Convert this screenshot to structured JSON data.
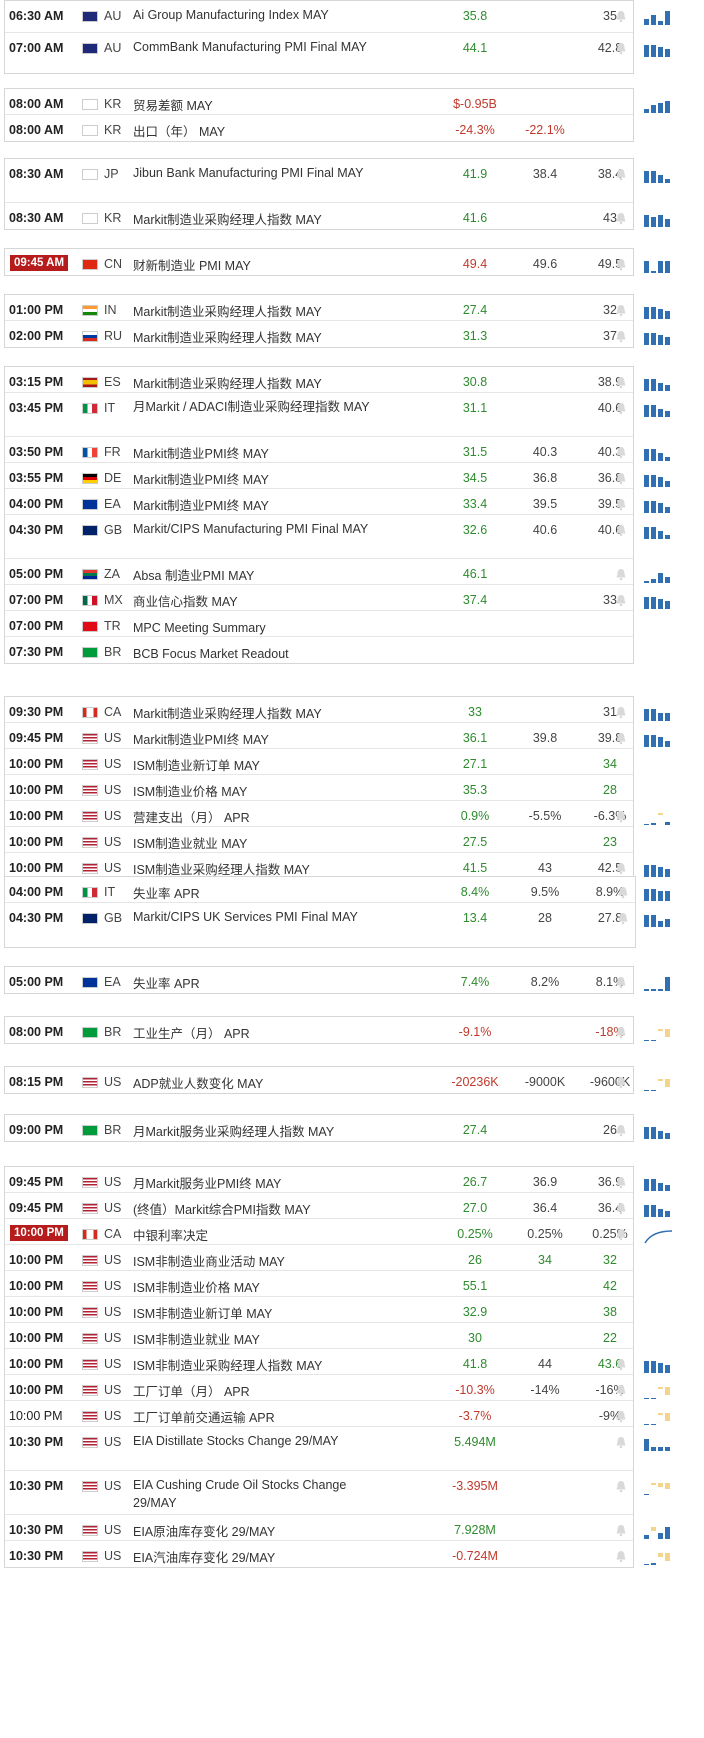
{
  "colors": {
    "positive": "#2e8b2e",
    "negative": "#c0392b",
    "highlight": "#b71c1c",
    "bar": "#2f6fb2",
    "bar_neg": "#f2d58a"
  },
  "groups": [
    {
      "rows": [
        {
          "time": "06:30 AM",
          "cc": "AU",
          "flag": "au",
          "event": "Ai Group Manufacturing Index MAY",
          "actual": "35.8",
          "actual_c": "pos",
          "forecast": "",
          "previous": "35",
          "previous_c": "neu",
          "spark": [
            6,
            10,
            4,
            14
          ],
          "bell": true
        },
        {
          "time": "07:00 AM",
          "cc": "AU",
          "flag": "au",
          "event": "CommBank Manufacturing PMI Final MAY",
          "actual": "44.1",
          "actual_c": "pos",
          "forecast": "",
          "previous": "42.8",
          "previous_c": "neu",
          "spark": [
            12,
            12,
            10,
            8
          ],
          "bell": true
        }
      ]
    },
    {
      "rows": [
        {
          "time": "08:00 AM",
          "cc": "KR",
          "flag": "kr",
          "event": "贸易差额 MAY",
          "actual": "$-0.95B",
          "actual_c": "neg",
          "forecast": "",
          "previous": "",
          "previous_c": "neu",
          "spark": [
            4,
            8,
            10,
            12
          ],
          "bell": false
        },
        {
          "time": "08:00 AM",
          "cc": "KR",
          "flag": "kr",
          "event": "出口（年） MAY",
          "actual": "-24.3%",
          "actual_c": "neg",
          "forecast": "-22.1%",
          "forecast_c": "neg",
          "previous": "",
          "previous_c": "neu",
          "spark": [],
          "bell": false
        }
      ]
    },
    {
      "rows": [
        {
          "time": "08:30 AM",
          "cc": "JP",
          "flag": "jp",
          "event": "Jibun Bank Manufacturing PMI Final MAY",
          "actual": "41.9",
          "actual_c": "pos",
          "forecast": "38.4",
          "previous": "38.4",
          "previous_c": "neu",
          "spark": [
            12,
            12,
            8,
            4
          ],
          "bell": true
        },
        {
          "time": "08:30 AM",
          "cc": "KR",
          "flag": "kr",
          "event": "Markit制造业采购经理人指数 MAY",
          "actual": "41.6",
          "actual_c": "pos",
          "forecast": "",
          "previous": "43",
          "previous_c": "neu",
          "spark": [
            12,
            10,
            12,
            8
          ],
          "bell": true
        }
      ]
    },
    {
      "rows": [
        {
          "time": "09:45 AM",
          "hl": true,
          "cc": "CN",
          "flag": "cn",
          "event": "财新制造业 PMI MAY",
          "actual": "49.4",
          "actual_c": "neg",
          "forecast": "49.6",
          "previous": "49.5",
          "previous_c": "neu",
          "spark": [
            12,
            2,
            12,
            12
          ],
          "bell": true
        }
      ]
    },
    {
      "rows": [
        {
          "time": "01:00 PM",
          "cc": "IN",
          "flag": "in",
          "event": "Markit制造业采购经理人指数 MAY",
          "actual": "27.4",
          "actual_c": "pos",
          "forecast": "",
          "previous": "32",
          "previous_c": "neu",
          "spark": [
            12,
            12,
            10,
            8
          ],
          "bell": true
        },
        {
          "time": "02:00 PM",
          "cc": "RU",
          "flag": "ru",
          "event": "Markit制造业采购经理人指数 MAY",
          "actual": "31.3",
          "actual_c": "pos",
          "forecast": "",
          "previous": "37",
          "previous_c": "neu",
          "spark": [
            12,
            12,
            10,
            8
          ],
          "bell": true
        }
      ]
    },
    {
      "rows": [
        {
          "time": "03:15 PM",
          "cc": "ES",
          "flag": "es",
          "event": "Markit制造业采购经理人指数 MAY",
          "actual": "30.8",
          "actual_c": "pos",
          "forecast": "",
          "previous": "38.9",
          "previous_c": "neu",
          "spark": [
            12,
            12,
            8,
            6
          ],
          "bell": true
        },
        {
          "time": "03:45 PM",
          "cc": "IT",
          "flag": "it",
          "event": "月Markit / ADACI制造业采购经理指数 MAY",
          "actual": "31.1",
          "actual_c": "pos",
          "forecast": "",
          "previous": "40.6",
          "previous_c": "neu",
          "spark": [
            12,
            12,
            8,
            6
          ],
          "bell": true
        },
        {
          "time": "03:50 PM",
          "cc": "FR",
          "flag": "fr",
          "event": "Markit制造业PMI终 MAY",
          "actual": "31.5",
          "actual_c": "pos",
          "forecast": "40.3",
          "previous": "40.3",
          "previous_c": "neu",
          "spark": [
            12,
            12,
            8,
            4
          ],
          "bell": true
        },
        {
          "time": "03:55 PM",
          "cc": "DE",
          "flag": "de",
          "event": "Markit制造业PMI终 MAY",
          "actual": "34.5",
          "actual_c": "pos",
          "forecast": "36.8",
          "previous": "36.8",
          "previous_c": "neu",
          "spark": [
            12,
            12,
            10,
            6
          ],
          "bell": true
        },
        {
          "time": "04:00 PM",
          "cc": "EA",
          "flag": "eu",
          "event": "Markit制造业PMI终 MAY",
          "actual": "33.4",
          "actual_c": "pos",
          "forecast": "39.5",
          "previous": "39.5",
          "previous_c": "neu",
          "spark": [
            12,
            12,
            10,
            6
          ],
          "bell": true
        },
        {
          "time": "04:30 PM",
          "cc": "GB",
          "flag": "gb",
          "event": "Markit/CIPS Manufacturing PMI Final MAY",
          "actual": "32.6",
          "actual_c": "pos",
          "forecast": "40.6",
          "previous": "40.6",
          "previous_c": "neu",
          "spark": [
            12,
            12,
            8,
            4
          ],
          "bell": true
        },
        {
          "time": "05:00 PM",
          "cc": "ZA",
          "flag": "za",
          "event": "Absa 制造业PMI MAY",
          "actual": "46.1",
          "actual_c": "pos",
          "forecast": "",
          "previous": "",
          "previous_c": "neu",
          "spark": [
            2,
            4,
            10,
            6
          ],
          "bell": true
        },
        {
          "time": "07:00 PM",
          "cc": "MX",
          "flag": "mx",
          "event": "商业信心指数 MAY",
          "actual": "37.4",
          "actual_c": "pos",
          "forecast": "",
          "previous": "33",
          "previous_c": "neu",
          "spark": [
            12,
            12,
            10,
            8
          ],
          "bell": true
        },
        {
          "time": "07:00 PM",
          "cc": "TR",
          "flag": "tr",
          "event": "MPC Meeting Summary",
          "actual": "",
          "actual_c": "pos",
          "forecast": "",
          "previous": "",
          "previous_c": "neu",
          "spark": [],
          "bell": false
        },
        {
          "time": "07:30 PM",
          "cc": "BR",
          "flag": "br",
          "event": "BCB Focus Market Readout",
          "actual": "",
          "actual_c": "pos",
          "forecast": "",
          "previous": "",
          "previous_c": "neu",
          "spark": [],
          "bell": false
        }
      ]
    },
    {
      "rows": [
        {
          "time": "09:30 PM",
          "cc": "CA",
          "flag": "ca",
          "event": "Markit制造业采购经理人指数 MAY",
          "actual": "33",
          "actual_c": "pos",
          "forecast": "",
          "previous": "31",
          "previous_c": "neu",
          "spark": [
            12,
            12,
            8,
            8
          ],
          "bell": true
        },
        {
          "time": "09:45 PM",
          "cc": "US",
          "flag": "us",
          "event": "Markit制造业PMI终 MAY",
          "actual": "36.1",
          "actual_c": "pos",
          "forecast": "39.8",
          "previous": "39.8",
          "previous_c": "neu",
          "spark": [
            12,
            12,
            10,
            6
          ],
          "bell": true
        },
        {
          "time": "10:00 PM",
          "cc": "US",
          "flag": "us",
          "event": "ISM制造业新订单 MAY",
          "actual": "27.1",
          "actual_c": "pos",
          "forecast": "",
          "previous": "34",
          "previous_c": "pos",
          "spark": [],
          "bell": false
        },
        {
          "time": "10:00 PM",
          "cc": "US",
          "flag": "us",
          "event": "ISM制造业价格 MAY",
          "actual": "35.3",
          "actual_c": "pos",
          "forecast": "",
          "previous": "28",
          "previous_c": "pos",
          "spark": [],
          "bell": false
        },
        {
          "time": "10:00 PM",
          "cc": "US",
          "flag": "us",
          "event": "营建支出（月） APR",
          "actual": "0.9%",
          "actual_c": "pos",
          "forecast": "-5.5%",
          "previous": "-6.3%",
          "previous_c": "neu",
          "spark": [
            1,
            2,
            -2,
            3
          ],
          "bell": true
        },
        {
          "time": "10:00 PM",
          "cc": "US",
          "flag": "us",
          "event": "ISM制造业就业 MAY",
          "actual": "27.5",
          "actual_c": "pos",
          "forecast": "",
          "previous": "23",
          "previous_c": "pos",
          "spark": [],
          "bell": false
        },
        {
          "time": "10:00 PM",
          "cc": "US",
          "flag": "us",
          "event": "ISM制造业采购经理人指数 MAY",
          "actual": "41.5",
          "actual_c": "pos",
          "forecast": "43",
          "previous": "42.5",
          "previous_c": "neu",
          "spark": [
            12,
            12,
            10,
            8
          ],
          "bell": true
        }
      ]
    },
    {
      "rows": [
        {
          "time": "04:00 PM",
          "cc": "IT",
          "flag": "it",
          "event": "失业率 APR",
          "actual": "8.4%",
          "actual_c": "pos",
          "forecast": "9.5%",
          "previous": "8.9%",
          "previous_c": "neu",
          "spark": [
            12,
            12,
            10,
            10
          ],
          "bell": true
        },
        {
          "time": "04:30 PM",
          "cc": "GB",
          "flag": "gb",
          "event": "Markit/CIPS UK Services PMI Final MAY",
          "actual": "13.4",
          "actual_c": "pos",
          "forecast": "28",
          "previous": "27.8",
          "previous_c": "neu",
          "spark": [
            12,
            12,
            6,
            8
          ],
          "bell": true
        }
      ]
    },
    {
      "rows": [
        {
          "time": "05:00 PM",
          "cc": "EA",
          "flag": "eu",
          "event": "失业率 APR",
          "actual": "7.4%",
          "actual_c": "pos",
          "forecast": "8.2%",
          "previous": "8.1%",
          "previous_c": "neu",
          "spark": [
            2,
            2,
            2,
            14
          ],
          "bell": true
        }
      ]
    },
    {
      "rows": [
        {
          "time": "08:00 PM",
          "cc": "BR",
          "flag": "br",
          "event": "工业生产（月） APR",
          "actual": "-9.1%",
          "actual_c": "neg",
          "forecast": "",
          "previous": "-18%",
          "previous_c": "neg",
          "spark": [
            1,
            1,
            -2,
            -8
          ],
          "bell": true
        }
      ]
    },
    {
      "rows": [
        {
          "time": "08:15 PM",
          "cc": "US",
          "flag": "us",
          "event": "ADP就业人数变化 MAY",
          "actual": "-20236K",
          "actual_c": "neg",
          "forecast": "-9000K",
          "previous": "-9600K",
          "previous_c": "neu",
          "spark": [
            1,
            1,
            -2,
            -8
          ],
          "bell": true
        }
      ]
    },
    {
      "rows": [
        {
          "time": "09:00 PM",
          "cc": "BR",
          "flag": "br",
          "event": "月Markit服务业采购经理人指数 MAY",
          "actual": "27.4",
          "actual_c": "pos",
          "forecast": "",
          "previous": "26",
          "previous_c": "neu",
          "spark": [
            12,
            12,
            8,
            6
          ],
          "bell": true
        }
      ]
    },
    {
      "rows": [
        {
          "time": "09:45 PM",
          "cc": "US",
          "flag": "us",
          "event": "月Markit服务业PMI终 MAY",
          "actual": "26.7",
          "actual_c": "pos",
          "forecast": "36.9",
          "previous": "36.9",
          "previous_c": "neu",
          "spark": [
            12,
            12,
            8,
            6
          ],
          "bell": true
        },
        {
          "time": "09:45 PM",
          "cc": "US",
          "flag": "us",
          "event": "(终值）Markit综合PMI指数 MAY",
          "actual": "27.0",
          "actual_c": "pos",
          "forecast": "36.4",
          "previous": "36.4",
          "previous_c": "neu",
          "spark": [
            12,
            12,
            8,
            6
          ],
          "bell": true
        },
        {
          "time": "10:00 PM",
          "hl": true,
          "cc": "CA",
          "flag": "ca",
          "event": "中银利率决定",
          "actual": "0.25%",
          "actual_c": "pos",
          "forecast": "0.25%",
          "previous": "0.25%",
          "previous_c": "neu",
          "spark": "curve",
          "bell": true
        },
        {
          "time": "10:00 PM",
          "cc": "US",
          "flag": "us",
          "event": "ISM非制造业商业活动 MAY",
          "actual": "26",
          "actual_c": "pos",
          "forecast": "34",
          "previous": "32",
          "previous_c": "pos",
          "forecast_c": "pos",
          "spark": [],
          "bell": false
        },
        {
          "time": "10:00 PM",
          "cc": "US",
          "flag": "us",
          "event": "ISM非制造业价格 MAY",
          "actual": "55.1",
          "actual_c": "pos",
          "forecast": "",
          "previous": "42",
          "previous_c": "pos",
          "spark": [],
          "bell": false
        },
        {
          "time": "10:00 PM",
          "cc": "US",
          "flag": "us",
          "event": "ISM非制造业新订单 MAY",
          "actual": "32.9",
          "actual_c": "pos",
          "forecast": "",
          "previous": "38",
          "previous_c": "pos",
          "spark": [],
          "bell": false
        },
        {
          "time": "10:00 PM",
          "cc": "US",
          "flag": "us",
          "event": "ISM非制造业就业 MAY",
          "actual": "30",
          "actual_c": "pos",
          "forecast": "",
          "previous": "22",
          "previous_c": "pos",
          "spark": [],
          "bell": false
        },
        {
          "time": "10:00 PM",
          "cc": "US",
          "flag": "us",
          "event": "ISM非制造业采购经理人指数 MAY",
          "actual": "41.8",
          "actual_c": "pos",
          "forecast": "44",
          "previous": "43.6",
          "previous_c": "pos",
          "spark": [
            12,
            12,
            10,
            8
          ],
          "bell": true
        },
        {
          "time": "10:00 PM",
          "cc": "US",
          "flag": "us",
          "event": "工厂订单（月） APR",
          "actual": "-10.3%",
          "actual_c": "neg",
          "forecast": "-14%",
          "previous": "-16%",
          "previous_c": "neu",
          "spark": [
            1,
            1,
            -2,
            -8
          ],
          "bell": true
        },
        {
          "time": "10:00 PM",
          "plain": true,
          "cc": "US",
          "flag": "us",
          "event": "工厂订单前交通运输 APR",
          "actual": "-3.7%",
          "actual_c": "neg",
          "forecast": "",
          "previous": "-9%",
          "previous_c": "neu",
          "spark": [
            1,
            1,
            -2,
            -8
          ],
          "bell": true
        },
        {
          "time": "10:30 PM",
          "cc": "US",
          "flag": "us",
          "event": "EIA Distillate Stocks Change 29/MAY",
          "actual": "5.494M",
          "actual_c": "pos",
          "forecast": "",
          "previous": "",
          "previous_c": "neu",
          "spark": [
            12,
            4,
            4,
            4
          ],
          "bell": true
        },
        {
          "time": "10:30 PM",
          "cc": "US",
          "flag": "us",
          "event": "EIA Cushing Crude Oil Stocks Change 29/MAY",
          "actual": "-3.395M",
          "actual_c": "neg",
          "forecast": "",
          "previous": "",
          "previous_c": "neu",
          "spark": [
            1,
            -2,
            -4,
            -6
          ],
          "bell": true
        },
        {
          "time": "10:30 PM",
          "cc": "US",
          "flag": "us",
          "event": "EIA原油库存变化 29/MAY",
          "actual": "7.928M",
          "actual_c": "pos",
          "forecast": "",
          "previous": "",
          "previous_c": "neu",
          "spark": [
            4,
            -4,
            6,
            12
          ],
          "bell": true
        },
        {
          "time": "10:30 PM",
          "cc": "US",
          "flag": "us",
          "event": "EIA汽油库存变化 29/MAY",
          "actual": "-0.724M",
          "actual_c": "neg",
          "forecast": "",
          "previous": "",
          "previous_c": "neu",
          "spark": [
            1,
            2,
            -4,
            -8
          ],
          "bell": true
        }
      ]
    }
  ]
}
